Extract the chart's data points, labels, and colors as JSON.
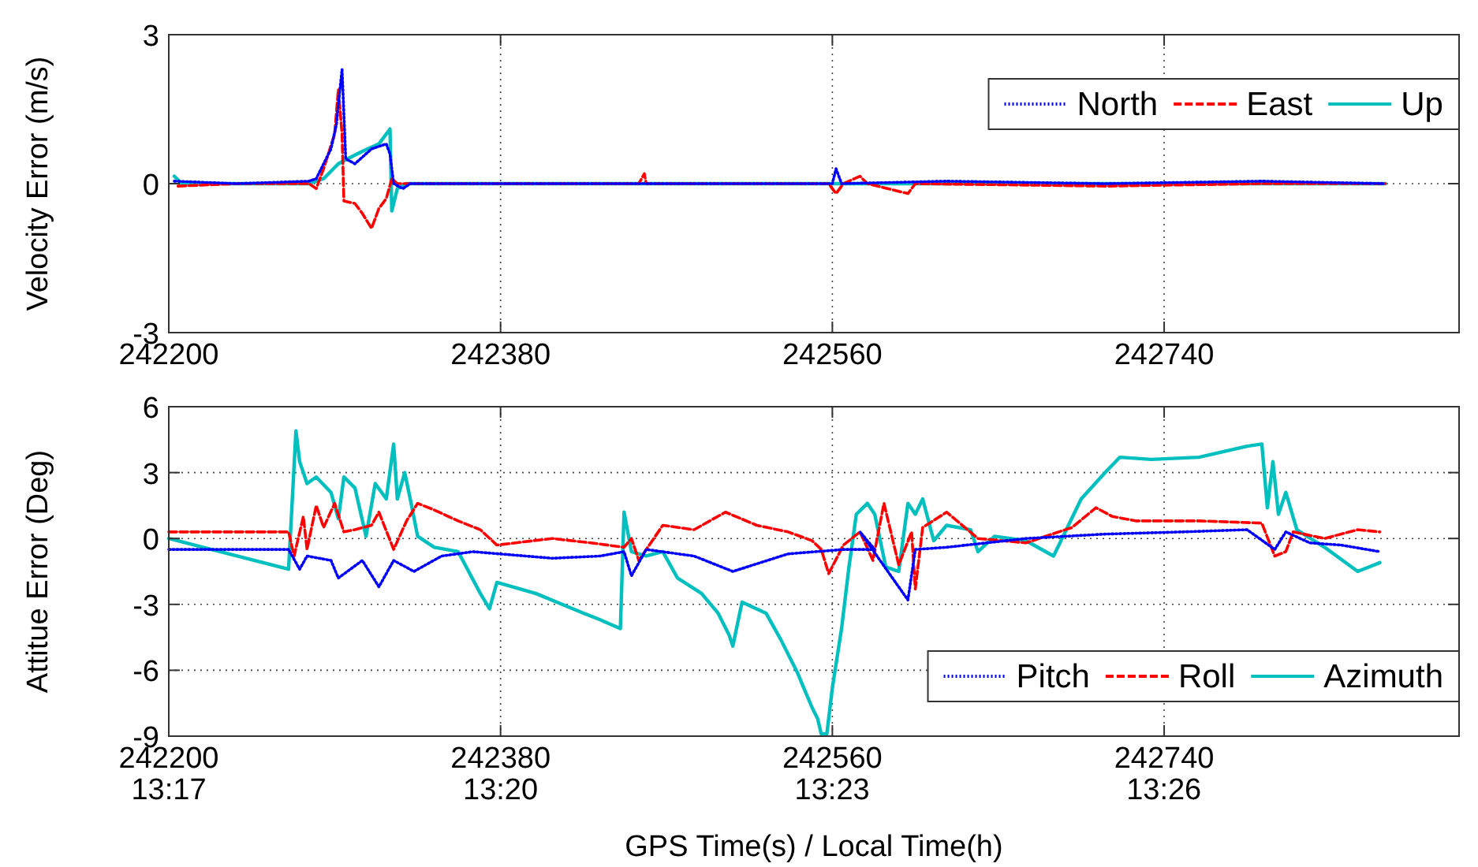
{
  "chart_data": [
    {
      "type": "line",
      "ylabel": "Velocity Error (m/s)",
      "xlim": [
        242200,
        242900
      ],
      "xticks": [
        242200,
        242380,
        242560,
        242740
      ],
      "ylim": [
        -3,
        3
      ],
      "yticks": [
        -3,
        0,
        3
      ],
      "grid": true,
      "legend": "top right",
      "marker": "none",
      "series": [
        {
          "name": "North",
          "color": "#0000ff",
          "line_style": "dotted",
          "x": [
            242203,
            242237,
            242276,
            242280,
            242284,
            242288,
            242291,
            242292,
            242294,
            242296,
            242301,
            242310,
            242318,
            242320,
            242322,
            242327,
            242331,
            242454,
            242560,
            242562,
            242565,
            242622,
            242708,
            242793,
            242860
          ],
          "values": [
            0.05,
            0,
            0.05,
            0.1,
            0.4,
            0.7,
            1.2,
            1.6,
            2.3,
            0.5,
            0.4,
            0.7,
            0.8,
            0.6,
            0,
            -0.1,
            0,
            0,
            0,
            0.3,
            0,
            0.05,
            0,
            0.05,
            0
          ]
        },
        {
          "name": "East",
          "color": "#ff0000",
          "line_style": "dashed",
          "x": [
            242205,
            242237,
            242276,
            242280,
            242284,
            242290,
            242292,
            242294,
            242295,
            242301,
            242305,
            242310,
            242314,
            242318,
            242321,
            242324,
            242455,
            242458,
            242459,
            242558,
            242562,
            242566,
            242575,
            242579,
            242601,
            242605,
            242708,
            242793,
            242860
          ],
          "values": [
            -0.05,
            0,
            0,
            -0.1,
            0.3,
            1.0,
            1.9,
            1.0,
            -0.35,
            -0.4,
            -0.6,
            -0.9,
            -0.5,
            -0.3,
            0.1,
            0,
            0,
            0.2,
            0,
            0,
            -0.2,
            0,
            0.15,
            0,
            -0.2,
            0,
            -0.05,
            0,
            0
          ]
        },
        {
          "name": "Up",
          "color": "#00bfbf",
          "line_style": "solid",
          "x": [
            242203,
            242207,
            242276,
            242284,
            242292,
            242297,
            242305,
            242314,
            242320,
            242321,
            242324,
            242329,
            242860
          ],
          "values": [
            0.15,
            0,
            0,
            0.1,
            0.4,
            0.5,
            0.65,
            0.8,
            1.1,
            -0.55,
            -0.1,
            0,
            0
          ]
        }
      ]
    },
    {
      "type": "line",
      "ylabel": "Attitue Error (Deg)",
      "xlabel": "GPS Time(s) / Local Time(h)",
      "xlim": [
        242200,
        242900
      ],
      "xticks": [
        242200,
        242380,
        242560,
        242740
      ],
      "x2lim": [
        13.2833,
        13.4778
      ],
      "x2ticks": [
        {
          "value": 13.2833,
          "label": "13:17"
        },
        {
          "value": 13.3333,
          "label": "13:20"
        },
        {
          "value": 13.3833,
          "label": "13:23"
        },
        {
          "value": 13.4333,
          "label": "13:26"
        }
      ],
      "ylim": [
        -9,
        6
      ],
      "yticks": [
        -9,
        -6,
        -3,
        0,
        3,
        6
      ],
      "grid": true,
      "legend": "bottom right",
      "marker": "none",
      "series": [
        {
          "name": "Pitch",
          "color": "#0000ff",
          "line_style": "dotted",
          "x": [
            242200,
            242265,
            242271,
            242275,
            242288,
            242292,
            242305,
            242314,
            242322,
            242333,
            242348,
            242365,
            242408,
            242434,
            242447,
            242451,
            242459,
            242485,
            242506,
            242536,
            242566,
            242583,
            242575,
            242601,
            242605,
            242622,
            242665,
            242708,
            242750,
            242785,
            242800,
            242806,
            242819,
            242836,
            242857
          ],
          "values": [
            -0.5,
            -0.5,
            -1.4,
            -0.8,
            -1.0,
            -1.8,
            -1.0,
            -2.2,
            -1.0,
            -1.5,
            -0.8,
            -0.6,
            -0.9,
            -0.8,
            -0.6,
            -1.7,
            -0.5,
            -0.8,
            -1.5,
            -0.7,
            -0.5,
            -0.5,
            0.3,
            -2.8,
            -0.5,
            -0.4,
            0.0,
            0.2,
            0.3,
            0.4,
            -0.5,
            0.3,
            -0.2,
            -0.3,
            -0.6
          ]
        },
        {
          "name": "Roll",
          "color": "#ff0000",
          "line_style": "dashed",
          "x": [
            242200,
            242265,
            242268,
            242273,
            242275,
            242280,
            242284,
            242290,
            242295,
            242301,
            242310,
            242314,
            242322,
            242329,
            242335,
            242344,
            242357,
            242369,
            242378,
            242408,
            242429,
            242447,
            242451,
            242455,
            242468,
            242485,
            242502,
            242519,
            242536,
            242549,
            242554,
            242558,
            242566,
            242575,
            242582,
            242588,
            242596,
            242603,
            242605,
            242609,
            242622,
            242639,
            242665,
            242690,
            242703,
            242712,
            242725,
            242759,
            242793,
            242800,
            242806,
            242810,
            242827,
            242845,
            242857
          ],
          "values": [
            0.3,
            0.3,
            -0.8,
            1.0,
            -0.5,
            1.5,
            0.5,
            1.6,
            0.3,
            0.4,
            0.6,
            1.2,
            -0.5,
            0.8,
            1.6,
            1.3,
            0.8,
            0.4,
            -0.3,
            0.0,
            -0.2,
            -0.4,
            0.0,
            -1.0,
            0.6,
            0.4,
            1.2,
            0.6,
            0.3,
            -0.1,
            -0.5,
            -1.6,
            -0.3,
            0.3,
            -1.0,
            1.6,
            -1.2,
            0.3,
            -2.3,
            0.5,
            1.2,
            0.0,
            -0.2,
            0.5,
            1.4,
            1.0,
            0.8,
            0.8,
            0.7,
            -0.8,
            -0.6,
            0.3,
            0.0,
            0.4,
            0.3
          ]
        },
        {
          "name": "Azimuth",
          "color": "#00bfbf",
          "line_style": "solid",
          "x": [
            242200,
            242265,
            242269,
            242271,
            242275,
            242280,
            242288,
            242292,
            242295,
            242301,
            242307,
            242312,
            242318,
            242322,
            242324,
            242328,
            242331,
            242335,
            242344,
            242357,
            242369,
            242374,
            242378,
            242399,
            242425,
            242434,
            242445,
            242447,
            242451,
            242459,
            242468,
            242476,
            242489,
            242498,
            242504,
            242506,
            242511,
            242524,
            242532,
            242541,
            242549,
            242552,
            242554,
            242557,
            242560,
            242565,
            242569,
            242573,
            242579,
            242583,
            242589,
            242596,
            242601,
            242605,
            242609,
            242615,
            242622,
            242635,
            242639,
            242648,
            242665,
            242680,
            242695,
            242708,
            242716,
            242733,
            242759,
            242785,
            242793,
            242796,
            242799,
            242802,
            242806,
            242812,
            242827,
            242845,
            242851,
            242857
          ],
          "values": [
            0.0,
            -1.4,
            4.9,
            3.5,
            2.5,
            2.8,
            2.1,
            0.9,
            2.8,
            2.3,
            0.1,
            2.5,
            1.8,
            4.3,
            1.8,
            3.0,
            1.8,
            0.1,
            -0.4,
            -0.6,
            -2.5,
            -3.2,
            -2.0,
            -2.5,
            -3.4,
            -3.7,
            -4.1,
            1.2,
            -0.6,
            -0.8,
            -0.6,
            -1.8,
            -2.5,
            -3.4,
            -4.4,
            -4.9,
            -2.9,
            -3.4,
            -4.6,
            -6.1,
            -7.7,
            -8.2,
            -8.9,
            -8.9,
            -6.8,
            -4.1,
            -1.3,
            1.1,
            1.6,
            1.1,
            -1.3,
            -1.5,
            1.6,
            1.1,
            1.8,
            -0.1,
            0.6,
            0.4,
            -0.6,
            0.1,
            -0.1,
            -0.8,
            1.8,
            3.0,
            3.7,
            3.6,
            3.7,
            4.2,
            4.3,
            1.4,
            3.5,
            1.1,
            2.1,
            0.4,
            -0.4,
            -1.5,
            -1.3,
            -1.1
          ]
        }
      ]
    }
  ]
}
